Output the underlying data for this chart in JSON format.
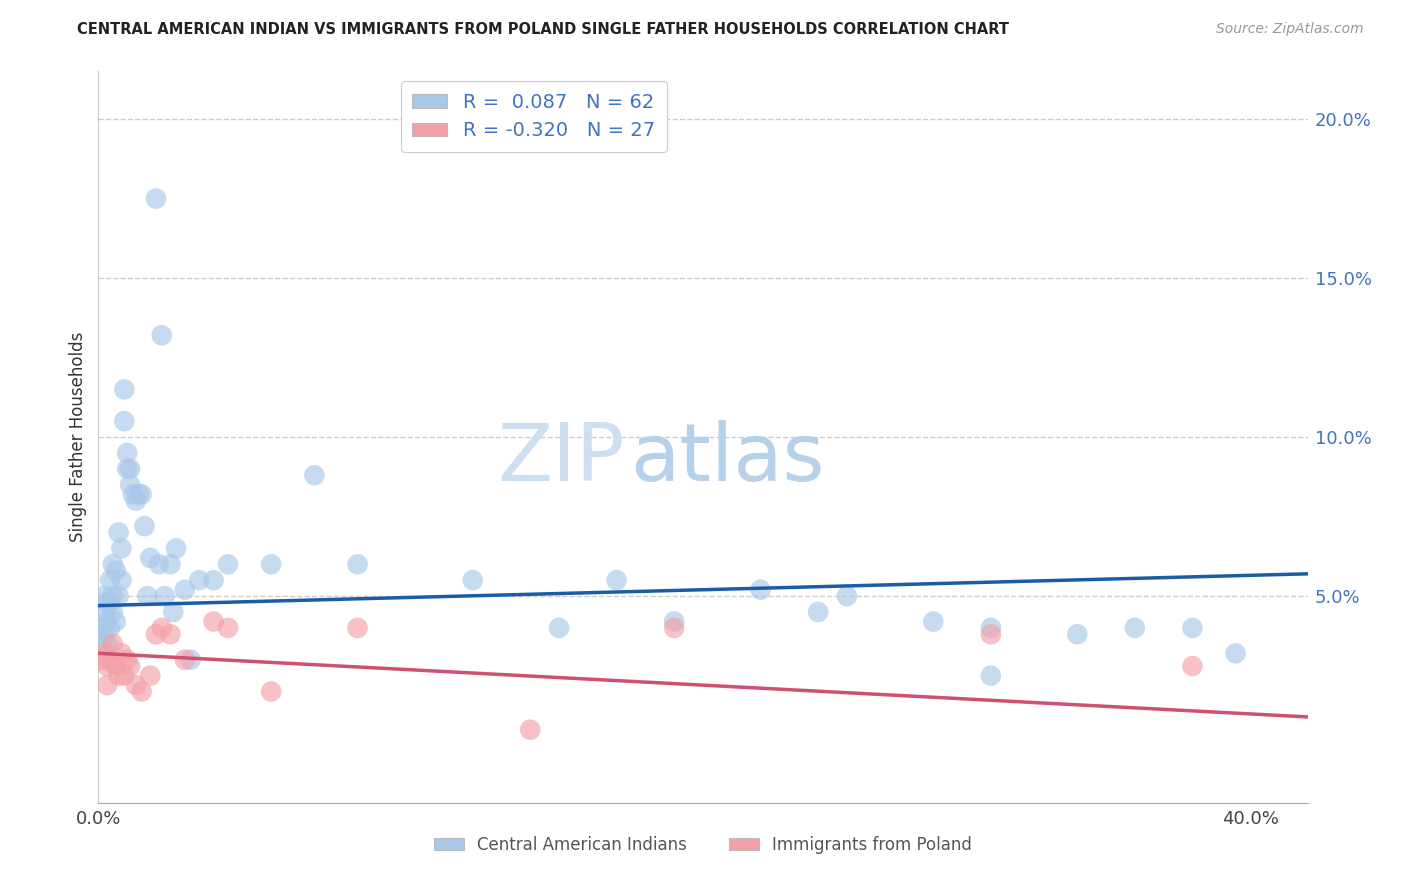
{
  "title": "CENTRAL AMERICAN INDIAN VS IMMIGRANTS FROM POLAND SINGLE FATHER HOUSEHOLDS CORRELATION CHART",
  "source": "Source: ZipAtlas.com",
  "ylabel": "Single Father Households",
  "right_yticks": [
    "20.0%",
    "15.0%",
    "10.0%",
    "5.0%"
  ],
  "right_ytick_vals": [
    0.2,
    0.15,
    0.1,
    0.05
  ],
  "blue_color": "#a8c8e8",
  "pink_color": "#f4a0a8",
  "blue_line_color": "#1a5ca8",
  "pink_line_color": "#d05070",
  "xlim": [
    0.0,
    0.42
  ],
  "ylim": [
    -0.015,
    0.215
  ],
  "blue_x": [
    0.001,
    0.001,
    0.002,
    0.002,
    0.002,
    0.003,
    0.003,
    0.003,
    0.004,
    0.004,
    0.004,
    0.005,
    0.005,
    0.005,
    0.006,
    0.006,
    0.007,
    0.007,
    0.008,
    0.008,
    0.009,
    0.009,
    0.01,
    0.01,
    0.011,
    0.011,
    0.012,
    0.013,
    0.014,
    0.015,
    0.016,
    0.017,
    0.018,
    0.02,
    0.021,
    0.022,
    0.023,
    0.025,
    0.026,
    0.027,
    0.03,
    0.032,
    0.035,
    0.04,
    0.045,
    0.06,
    0.075,
    0.09,
    0.13,
    0.16,
    0.2,
    0.23,
    0.26,
    0.29,
    0.31,
    0.34,
    0.36,
    0.38,
    0.395,
    0.25,
    0.18,
    0.31
  ],
  "blue_y": [
    0.04,
    0.035,
    0.05,
    0.045,
    0.038,
    0.048,
    0.042,
    0.035,
    0.055,
    0.04,
    0.048,
    0.06,
    0.045,
    0.05,
    0.058,
    0.042,
    0.07,
    0.05,
    0.065,
    0.055,
    0.115,
    0.105,
    0.095,
    0.09,
    0.09,
    0.085,
    0.082,
    0.08,
    0.082,
    0.082,
    0.072,
    0.05,
    0.062,
    0.175,
    0.06,
    0.132,
    0.05,
    0.06,
    0.045,
    0.065,
    0.052,
    0.03,
    0.055,
    0.055,
    0.06,
    0.06,
    0.088,
    0.06,
    0.055,
    0.04,
    0.042,
    0.052,
    0.05,
    0.042,
    0.025,
    0.038,
    0.04,
    0.04,
    0.032,
    0.045,
    0.055,
    0.04
  ],
  "pink_x": [
    0.001,
    0.002,
    0.003,
    0.003,
    0.004,
    0.005,
    0.006,
    0.007,
    0.008,
    0.009,
    0.01,
    0.011,
    0.013,
    0.015,
    0.018,
    0.02,
    0.022,
    0.025,
    0.03,
    0.04,
    0.045,
    0.06,
    0.09,
    0.15,
    0.2,
    0.31,
    0.38
  ],
  "pink_y": [
    0.03,
    0.032,
    0.028,
    0.022,
    0.03,
    0.035,
    0.028,
    0.025,
    0.032,
    0.025,
    0.03,
    0.028,
    0.022,
    0.02,
    0.025,
    0.038,
    0.04,
    0.038,
    0.03,
    0.042,
    0.04,
    0.02,
    0.04,
    0.008,
    0.04,
    0.038,
    0.028
  ],
  "blue_trend_x": [
    0.0,
    0.42
  ],
  "blue_trend_y": [
    0.047,
    0.057
  ],
  "pink_trend_x": [
    0.0,
    0.42
  ],
  "pink_trend_y": [
    0.032,
    0.012
  ]
}
